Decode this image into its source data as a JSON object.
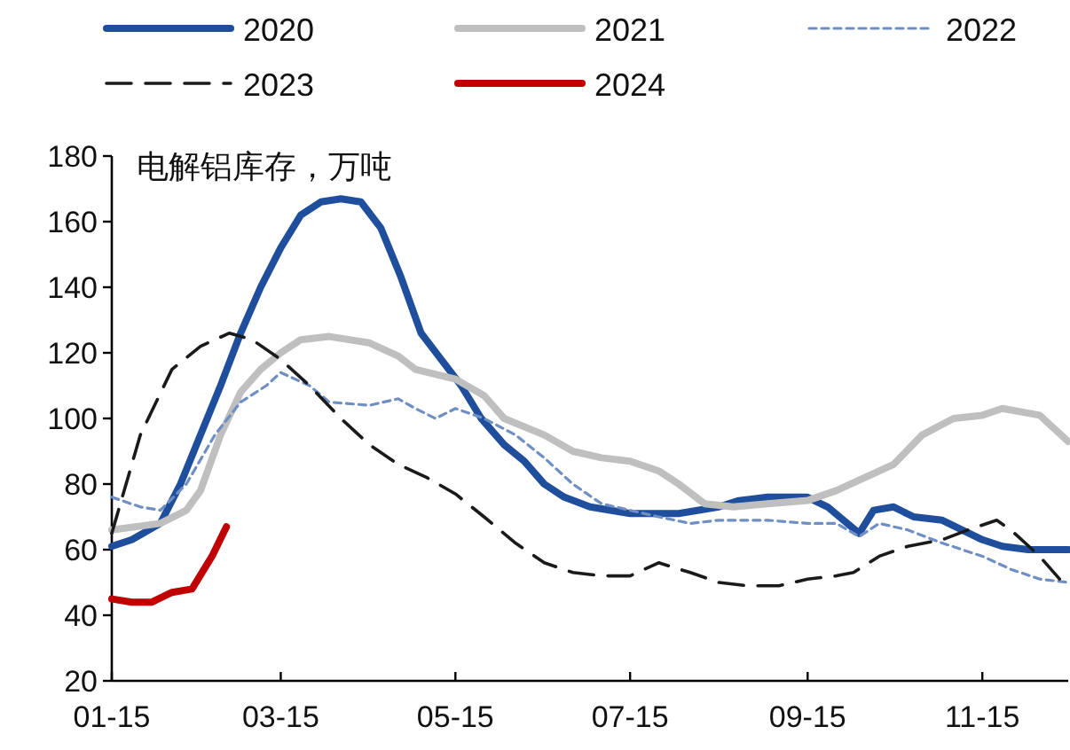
{
  "chart_data": {
    "type": "line",
    "ylabel": "电解铝库存，万吨",
    "legend": "top",
    "xlim": [
      "--01-15",
      "--12-15"
    ],
    "ylim": [
      20,
      180
    ],
    "xticks": [
      {
        "value": "--01-15",
        "label": "01-15"
      },
      {
        "value": "--03-15",
        "label": "03-15"
      },
      {
        "value": "--05-15",
        "label": "05-15"
      },
      {
        "value": "--07-15",
        "label": "07-15"
      },
      {
        "value": "--09-15",
        "label": "09-15"
      },
      {
        "value": "--11-15",
        "label": "11-15"
      }
    ],
    "yticks": [
      20,
      40,
      60,
      80,
      100,
      120,
      140,
      160,
      180
    ],
    "series": [
      {
        "name": "2020",
        "color": "#1f4e9c",
        "line_style": "solid",
        "x": [
          "--01-15",
          "--01-22",
          "--02-01",
          "--02-08",
          "--02-15",
          "--02-22",
          "--03-01",
          "--03-08",
          "--03-15",
          "--03-22",
          "--03-29",
          "--04-05",
          "--04-12",
          "--04-19",
          "--04-26",
          "--05-03",
          "--05-10",
          "--05-17",
          "--05-24",
          "--06-01",
          "--06-08",
          "--06-15",
          "--06-22",
          "--07-01",
          "--07-15",
          "--08-01",
          "--08-15",
          "--08-22",
          "--09-01",
          "--09-15",
          "--09-22",
          "--10-03",
          "--10-08",
          "--10-15",
          "--10-22",
          "--11-01",
          "--11-08",
          "--11-15",
          "--11-22",
          "--12-01",
          "--12-15"
        ],
        "values": [
          61,
          63,
          68,
          80,
          95,
          110,
          126,
          140,
          152,
          162,
          166,
          167,
          166,
          158,
          143,
          126,
          118,
          110,
          100,
          92,
          87,
          80,
          76,
          73,
          71,
          71,
          73,
          75,
          76,
          76,
          73,
          65,
          72,
          73,
          70,
          69,
          66,
          63,
          61,
          60,
          60
        ]
      },
      {
        "name": "2021",
        "color": "#bfbfbf",
        "line_style": "solid",
        "x": [
          "--01-15",
          "--02-01",
          "--02-10",
          "--02-15",
          "--02-22",
          "--03-01",
          "--03-08",
          "--03-15",
          "--03-22",
          "--04-01",
          "--04-15",
          "--04-25",
          "--05-01",
          "--05-15",
          "--05-25",
          "--06-01",
          "--06-15",
          "--06-25",
          "--07-05",
          "--07-15",
          "--07-25",
          "--08-01",
          "--08-10",
          "--08-20",
          "--09-01",
          "--09-15",
          "--09-25",
          "--10-05",
          "--10-15",
          "--10-25",
          "--11-05",
          "--11-15",
          "--11-22",
          "--12-05",
          "--12-15"
        ],
        "values": [
          66,
          68,
          72,
          78,
          95,
          108,
          115,
          120,
          124,
          125,
          123,
          119,
          115,
          112,
          107,
          100,
          95,
          90,
          88,
          87,
          84,
          80,
          74,
          73,
          74,
          75,
          78,
          82,
          86,
          95,
          100,
          101,
          103,
          101,
          93
        ]
      },
      {
        "name": "2022",
        "color": "#6f8fc4",
        "line_style": "dotted",
        "x": [
          "--01-15",
          "--01-25",
          "--02-01",
          "--02-10",
          "--02-20",
          "--03-01",
          "--03-10",
          "--03-15",
          "--03-25",
          "--04-01",
          "--04-15",
          "--04-25",
          "--05-01",
          "--05-08",
          "--05-15",
          "--05-25",
          "--06-05",
          "--06-15",
          "--06-25",
          "--07-05",
          "--07-15",
          "--07-25",
          "--08-05",
          "--08-15",
          "--09-01",
          "--09-15",
          "--09-25",
          "--10-03",
          "--10-10",
          "--10-20",
          "--11-01",
          "--11-15",
          "--11-25",
          "--12-05",
          "--12-15"
        ],
        "values": [
          76,
          73,
          72,
          80,
          95,
          105,
          110,
          114,
          110,
          105,
          104,
          106,
          103,
          100,
          103,
          100,
          95,
          88,
          80,
          74,
          72,
          70,
          68,
          69,
          69,
          68,
          68,
          64,
          68,
          66,
          62,
          58,
          54,
          51,
          50
        ]
      },
      {
        "name": "2023",
        "color": "#1a1a1a",
        "line_style": "dashed",
        "x": [
          "--01-15",
          "--01-25",
          "--02-05",
          "--02-15",
          "--02-25",
          "--03-05",
          "--03-15",
          "--03-25",
          "--04-05",
          "--04-15",
          "--04-25",
          "--05-05",
          "--05-15",
          "--05-25",
          "--06-05",
          "--06-15",
          "--06-25",
          "--07-05",
          "--07-15",
          "--07-25",
          "--08-05",
          "--08-15",
          "--08-25",
          "--09-05",
          "--09-15",
          "--09-25",
          "--10-01",
          "--10-10",
          "--10-20",
          "--11-01",
          "--11-10",
          "--11-20",
          "--11-25",
          "--12-05",
          "--12-15"
        ],
        "values": [
          65,
          95,
          115,
          122,
          126,
          124,
          118,
          110,
          100,
          92,
          86,
          82,
          77,
          70,
          62,
          56,
          53,
          52,
          52,
          56,
          53,
          50,
          49,
          49,
          51,
          52,
          53,
          58,
          61,
          63,
          66,
          69,
          66,
          58,
          48
        ]
      },
      {
        "name": "2024",
        "color": "#c00000",
        "line_style": "solid",
        "x": [
          "--01-15",
          "--01-22",
          "--01-29",
          "--02-05",
          "--02-12",
          "--02-19",
          "--02-24"
        ],
        "values": [
          45,
          44,
          44,
          47,
          48,
          58,
          67
        ]
      }
    ]
  }
}
